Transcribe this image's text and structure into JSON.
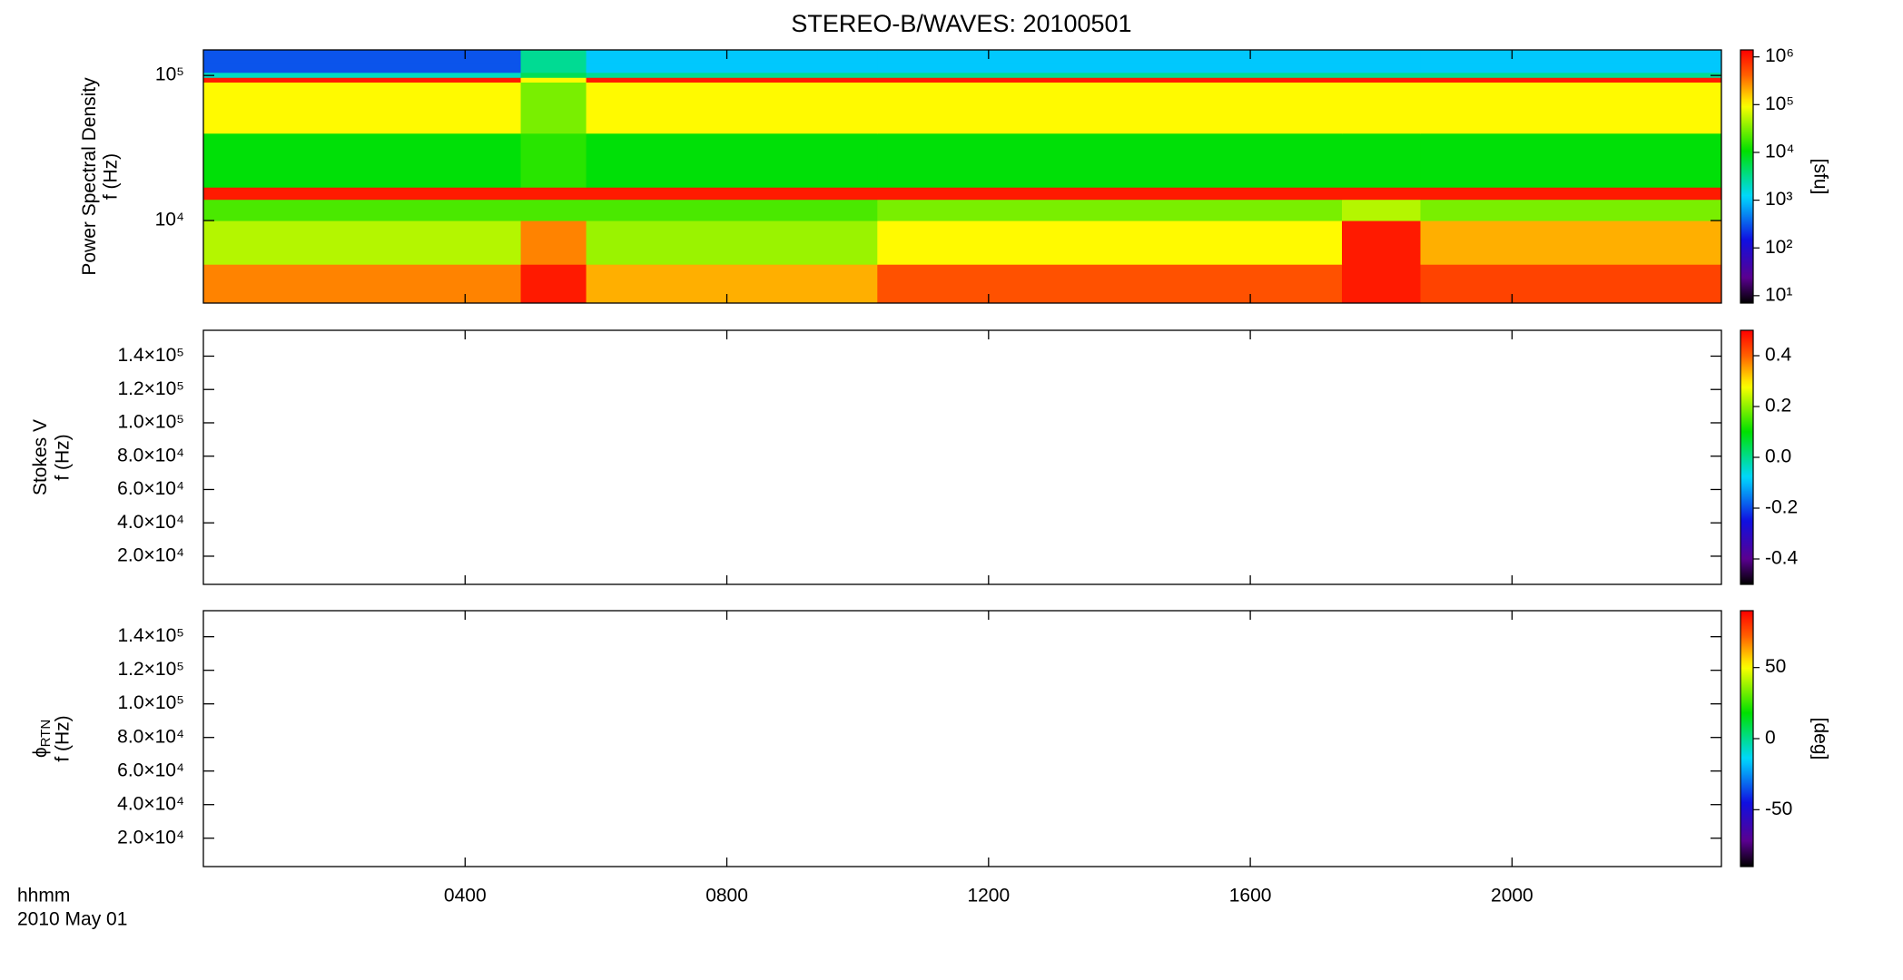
{
  "title": "STEREO-B/WAVES: 20100501",
  "x_axis": {
    "label": [
      "hhmm",
      "2010 May 01"
    ],
    "xlim": [
      0,
      23.2
    ],
    "xticks": [
      {
        "value": 4,
        "label": "0400"
      },
      {
        "value": 8,
        "label": "0800"
      },
      {
        "value": 12,
        "label": "1200"
      },
      {
        "value": 16,
        "label": "1600"
      },
      {
        "value": 20,
        "label": "2000"
      }
    ]
  },
  "chart_data": [
    {
      "type": "heatmap",
      "y_label": "Power Spectral Density",
      "y_unit_label": "f (Hz)",
      "ylim": [
        2700,
        150000
      ],
      "ylog": true,
      "yticks": [
        {
          "value": 10000,
          "label": "10⁴"
        },
        {
          "value": 100000,
          "label": "10⁵"
        }
      ],
      "x_edges": [
        0,
        4.85,
        5.85,
        10.3,
        17.4,
        18.6,
        23.2
      ],
      "y_edges": [
        2700,
        5000,
        10000,
        14000,
        17000,
        40000,
        90000,
        97000,
        105000,
        120000,
        150000
      ],
      "values": [
        [
          300000,
          1000000,
          200000,
          500000,
          1000000,
          600000
        ],
        [
          50000,
          300000,
          40000,
          100000,
          1000000,
          200000
        ],
        [
          20000,
          20000,
          20000,
          30000,
          50000,
          30000
        ],
        [
          1000000,
          1000000,
          1000000,
          1000000,
          1000000,
          1000000
        ],
        [
          10000,
          15000,
          10000,
          10000,
          10000,
          10000
        ],
        [
          100000,
          30000,
          100000,
          100000,
          100000,
          100000
        ],
        [
          1000000,
          100000,
          1000000,
          1000000,
          1000000,
          1000000
        ],
        [
          2000,
          5000,
          3000,
          3000,
          3000,
          3000
        ],
        [
          300,
          3000,
          1000,
          1000,
          1000,
          1000
        ],
        [
          300,
          3000,
          1000,
          1000,
          1000,
          1000
        ]
      ],
      "colormap": "rainbow",
      "colorbar": {
        "label": "[sfu]",
        "log": true,
        "lim": [
          7,
          1400000
        ],
        "ticks": [
          {
            "value": 10,
            "label": "10¹"
          },
          {
            "value": 100,
            "label": "10²"
          },
          {
            "value": 1000,
            "label": "10³"
          },
          {
            "value": 10000,
            "label": "10⁴"
          },
          {
            "value": 100000,
            "label": "10⁵"
          },
          {
            "value": 1000000,
            "label": "10⁶"
          }
        ]
      }
    },
    {
      "type": "heatmap",
      "y_label": "Stokes V",
      "y_unit_label": "f (Hz)",
      "ylim": [
        3100,
        155500
      ],
      "yticks": [
        {
          "value": 20000,
          "label": "2.0×10⁴"
        },
        {
          "value": 40000,
          "label": "4.0×10⁴"
        },
        {
          "value": 60000,
          "label": "6.0×10⁴"
        },
        {
          "value": 80000,
          "label": "8.0×10⁴"
        },
        {
          "value": 100000,
          "label": "1.0×10⁵"
        },
        {
          "value": 120000,
          "label": "1.2×10⁵"
        },
        {
          "value": 140000,
          "label": "1.4×10⁵"
        }
      ],
      "colormap": "rainbow",
      "colorbar": {
        "lim": [
          -0.5,
          0.5
        ],
        "ticks": [
          -0.4,
          -0.2,
          {
            "value": 0,
            "label": "0.0"
          },
          0.2,
          0.4
        ]
      }
    },
    {
      "type": "heatmap",
      "y_label": "ϕ",
      "y_label_sub": "RTN",
      "y_unit_label": "f (Hz)",
      "ylim": [
        3100,
        155500
      ],
      "yticks": [
        {
          "value": 20000,
          "label": "2.0×10⁴"
        },
        {
          "value": 40000,
          "label": "4.0×10⁴"
        },
        {
          "value": 60000,
          "label": "6.0×10⁴"
        },
        {
          "value": 80000,
          "label": "8.0×10⁴"
        },
        {
          "value": 100000,
          "label": "1.0×10⁵"
        },
        {
          "value": 120000,
          "label": "1.2×10⁵"
        },
        {
          "value": 140000,
          "label": "1.4×10⁵"
        }
      ],
      "colormap": "rainbow",
      "colorbar": {
        "label": "[deg]",
        "lim": [
          -90,
          90
        ],
        "ticks": [
          -50,
          0,
          50
        ]
      }
    }
  ]
}
